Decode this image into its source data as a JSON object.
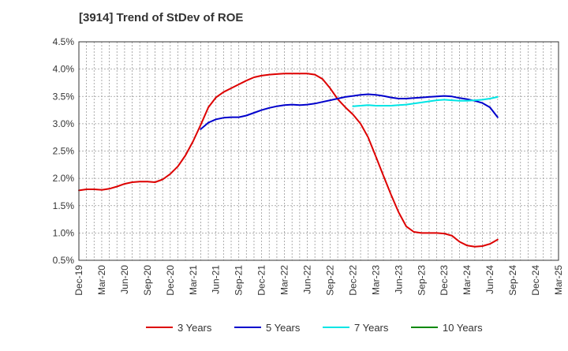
{
  "chart_data": {
    "type": "line",
    "title": "[3914]  Trend of StDev of ROE",
    "xlabel": "",
    "ylabel": "",
    "x_ticks": [
      "Dec-19",
      "Mar-20",
      "Jun-20",
      "Sep-20",
      "Dec-20",
      "Mar-21",
      "Jun-21",
      "Sep-21",
      "Dec-21",
      "Mar-22",
      "Jun-22",
      "Sep-22",
      "Dec-22",
      "Mar-23",
      "Jun-23",
      "Sep-23",
      "Dec-23",
      "Mar-24",
      "Jun-24",
      "Sep-24",
      "Dec-24",
      "Mar-25"
    ],
    "y_ticks": [
      "0.5%",
      "1.0%",
      "1.5%",
      "2.0%",
      "2.5%",
      "3.0%",
      "3.5%",
      "4.0%",
      "4.5%"
    ],
    "ylim": [
      0.5,
      4.5
    ],
    "grid": true,
    "legend_position": "bottom",
    "series": [
      {
        "name": "3 Years",
        "color": "#dd0000",
        "values": [
          1.78,
          1.8,
          1.8,
          1.79,
          1.81,
          1.85,
          1.9,
          1.93,
          1.94,
          1.94,
          1.93,
          1.98,
          2.08,
          2.22,
          2.42,
          2.68,
          2.98,
          3.3,
          3.48,
          3.58,
          3.65,
          3.72,
          3.79,
          3.85,
          3.88,
          3.9,
          3.91,
          3.92,
          3.92,
          3.92,
          3.92,
          3.9,
          3.82,
          3.65,
          3.45,
          3.3,
          3.17,
          3.0,
          2.75,
          2.4,
          2.05,
          1.7,
          1.38,
          1.12,
          1.02,
          1.0,
          1.0,
          1.0,
          0.99,
          0.95,
          0.84,
          0.77,
          0.75,
          0.76,
          0.8,
          0.88
        ]
      },
      {
        "name": "5 Years",
        "color": "#0000cc",
        "values": [
          null,
          null,
          null,
          null,
          null,
          null,
          null,
          null,
          null,
          null,
          null,
          null,
          null,
          null,
          null,
          null,
          2.9,
          3.02,
          3.08,
          3.11,
          3.12,
          3.12,
          3.15,
          3.2,
          3.25,
          3.29,
          3.32,
          3.34,
          3.35,
          3.34,
          3.35,
          3.37,
          3.4,
          3.43,
          3.46,
          3.49,
          3.51,
          3.53,
          3.54,
          3.53,
          3.51,
          3.48,
          3.46,
          3.46,
          3.47,
          3.48,
          3.49,
          3.5,
          3.51,
          3.5,
          3.47,
          3.45,
          3.42,
          3.38,
          3.3,
          3.12
        ]
      },
      {
        "name": "7 Years",
        "color": "#00e5e5",
        "values": [
          null,
          null,
          null,
          null,
          null,
          null,
          null,
          null,
          null,
          null,
          null,
          null,
          null,
          null,
          null,
          null,
          null,
          null,
          null,
          null,
          null,
          null,
          null,
          null,
          null,
          null,
          null,
          null,
          null,
          null,
          null,
          null,
          null,
          null,
          null,
          null,
          3.32,
          3.33,
          3.34,
          3.33,
          3.33,
          3.33,
          3.34,
          3.35,
          3.37,
          3.39,
          3.41,
          3.43,
          3.44,
          3.43,
          3.42,
          3.42,
          3.43,
          3.44,
          3.46,
          3.49
        ]
      },
      {
        "name": "10 Years",
        "color": "#008800",
        "values": []
      }
    ]
  }
}
